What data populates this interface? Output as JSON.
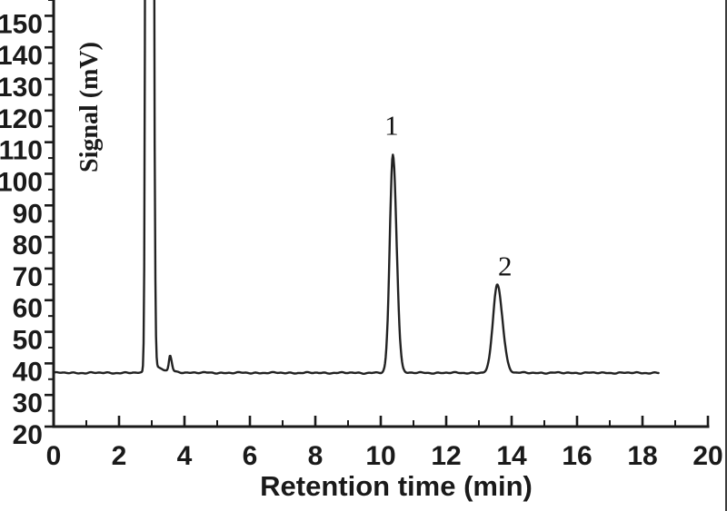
{
  "figure": {
    "kind": "chromatogram",
    "background": "#ffffff"
  },
  "colors": {
    "ink": "#1a1a1a",
    "trace": "#222222",
    "edge_line": "#3c3c3c"
  },
  "chart_data": {
    "type": "line",
    "title": "",
    "xlabel": "Retention time (min)",
    "ylabel": "Signal (mV)",
    "xlim": [
      0,
      20
    ],
    "ylim": [
      20,
      155
    ],
    "grid": false,
    "legend": null,
    "x_major_ticks": [
      0,
      2,
      4,
      6,
      8,
      10,
      12,
      14,
      16,
      18,
      20
    ],
    "x_minor_ticks": [
      1,
      3,
      5,
      7,
      9,
      11,
      13,
      15,
      17,
      19
    ],
    "y_major_ticks": [
      20,
      30,
      40,
      50,
      60,
      70,
      80,
      90,
      100,
      110,
      120,
      130,
      140,
      150
    ],
    "y_minor_ticks": [
      25,
      35,
      45,
      55,
      65,
      75,
      85,
      95,
      105,
      115,
      125,
      135,
      145,
      155
    ],
    "baseline_mV": 37,
    "trace_start_min": 0.05,
    "trace_end_min": 18.5,
    "clipped_above_mV": 155,
    "peaks": [
      {
        "id": "solvent-front",
        "label": "",
        "retention_min": 2.92,
        "apex_mV": "off-scale (clipped at top)",
        "clipped": true,
        "render": {
          "amp": 3000,
          "sl": 0.05,
          "sr": 0.062
        },
        "tail": {
          "amp": 3.2,
          "tau": 0.33,
          "start": 2.98
        }
      },
      {
        "id": "minor-blip",
        "label": "",
        "retention_min": 3.56,
        "apex_mV": 42,
        "render": {
          "amp": 4.8,
          "sl": 0.035,
          "sr": 0.05
        }
      },
      {
        "id": "peak-1",
        "label": "1",
        "retention_min": 10.37,
        "apex_mV": 106,
        "render": {
          "amp": 69,
          "sl": 0.095,
          "sr": 0.115
        },
        "label_pos": {
          "t": 10.33,
          "mV": 115.5
        }
      },
      {
        "id": "peak-2",
        "label": "2",
        "retention_min": 13.56,
        "apex_mV": 65,
        "render": {
          "amp": 28,
          "sl": 0.13,
          "sr": 0.16
        },
        "label_pos": {
          "t": 13.8,
          "mV": 71
        }
      }
    ],
    "trace_keypoints": [
      [
        0,
        37
      ],
      [
        2.7,
        37
      ],
      [
        2.92,
        155
      ],
      [
        3.1,
        43
      ],
      [
        3.3,
        39.5
      ],
      [
        3.56,
        42
      ],
      [
        3.8,
        37.5
      ],
      [
        9.9,
        37
      ],
      [
        10.37,
        106
      ],
      [
        10.9,
        37
      ],
      [
        13.0,
        37
      ],
      [
        13.56,
        65
      ],
      [
        14.2,
        37
      ],
      [
        18.5,
        37
      ]
    ]
  }
}
